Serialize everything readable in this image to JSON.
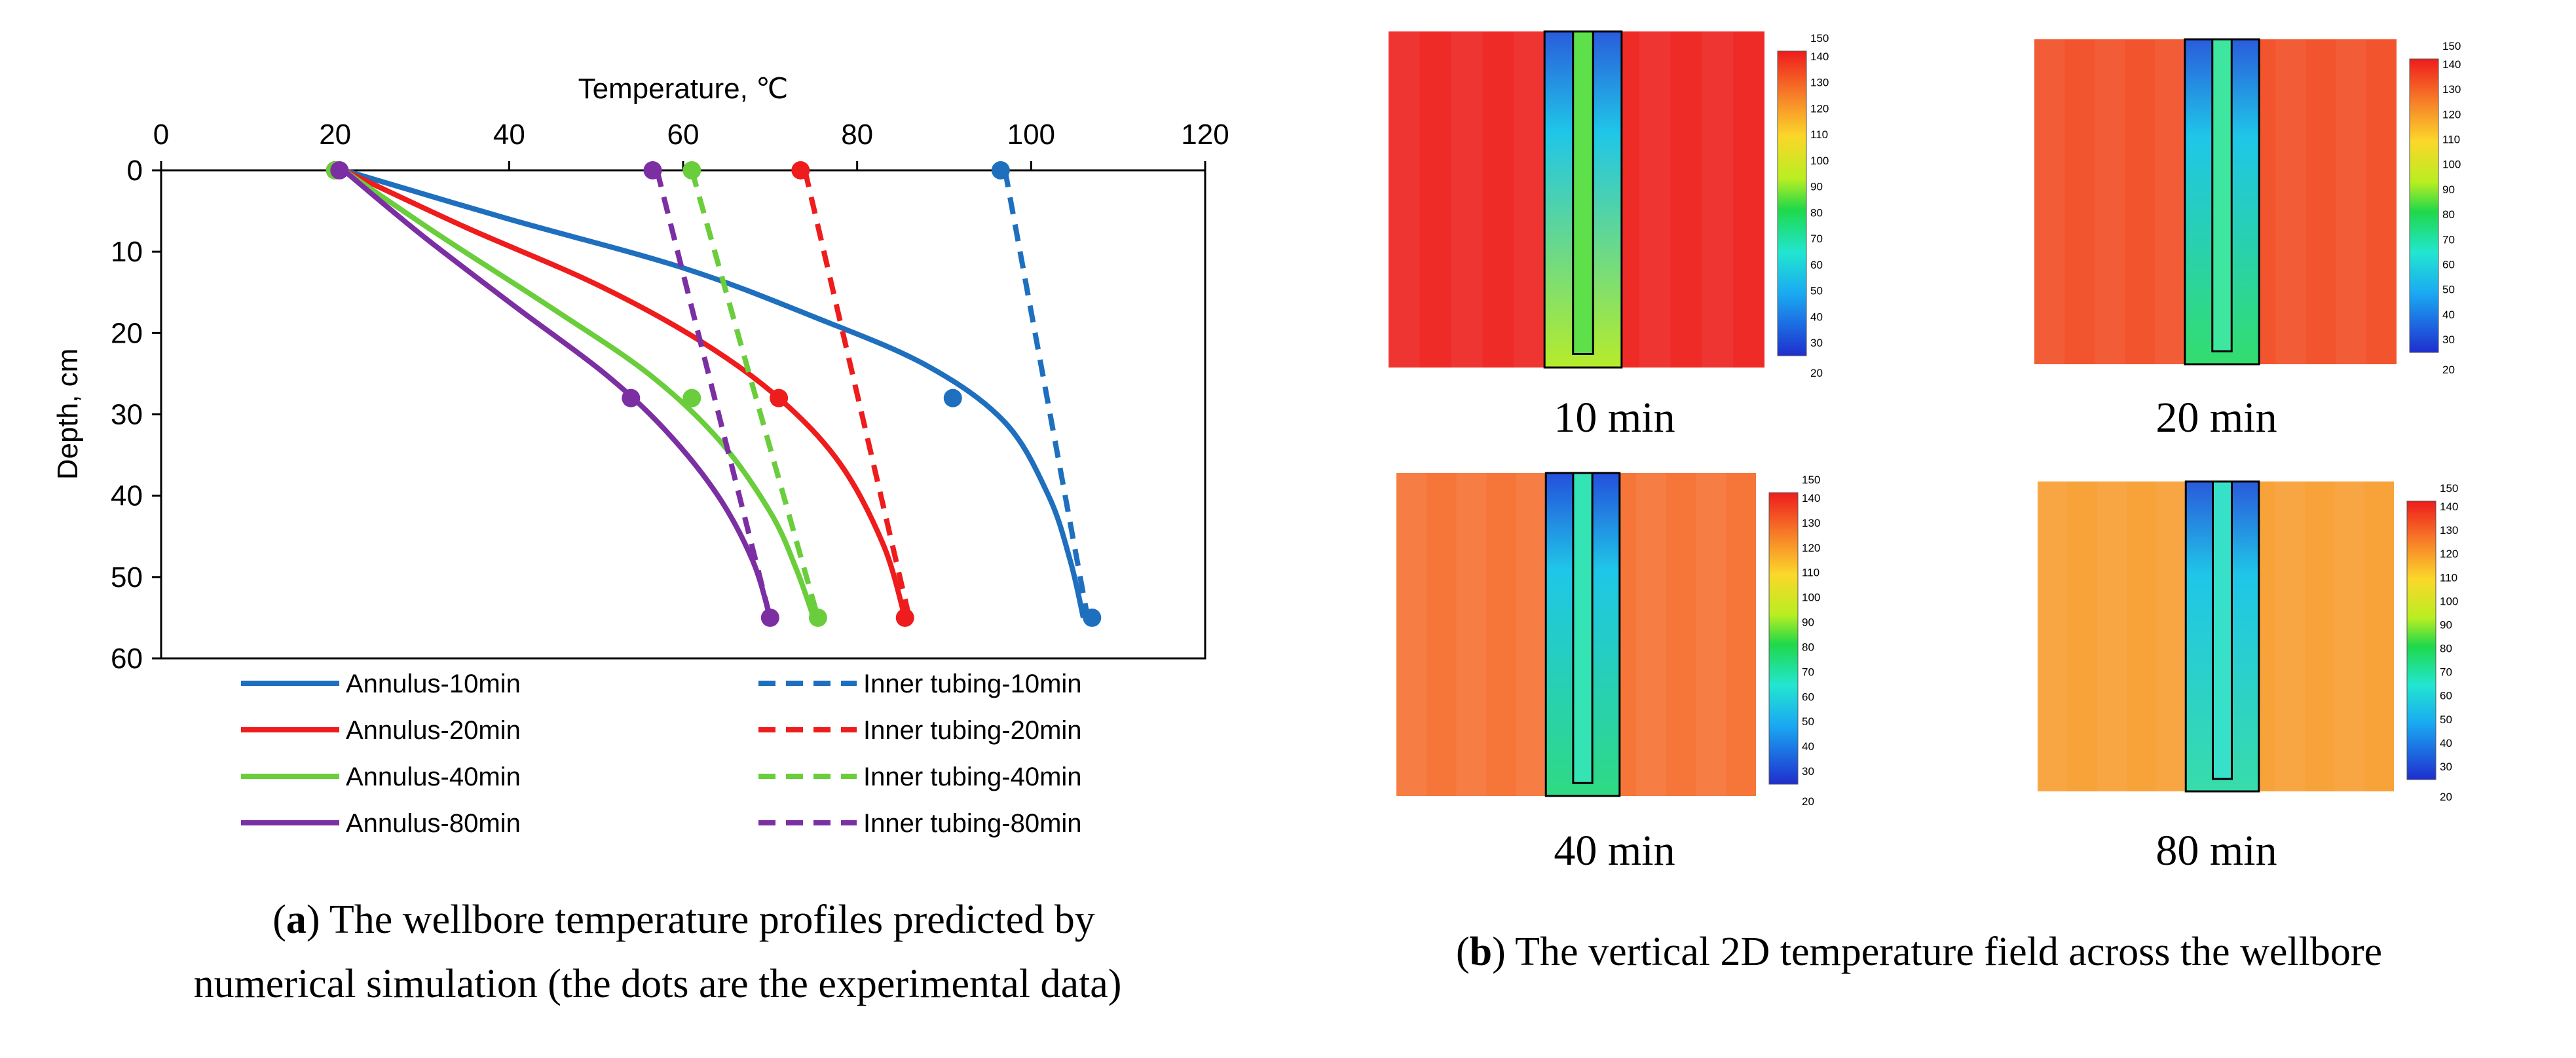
{
  "chart_data": [
    {
      "type": "line",
      "xlabel": "Temperature, ℃",
      "ylabel": "Depth, cm",
      "xlim": [
        0,
        120
      ],
      "ylim": [
        0,
        60
      ],
      "y_inverted": true,
      "x_axis_position": "top",
      "x_ticks": [
        "0",
        "20",
        "40",
        "60",
        "80",
        "100",
        "120"
      ],
      "y_ticks": [
        "0",
        "10",
        "20",
        "30",
        "40",
        "50",
        "60"
      ],
      "grid": false,
      "legend_position": "bottom",
      "series": [
        {
          "name": "Annulus-10min",
          "style": "solid",
          "color": "#1f6fbf",
          "points": [
            [
              21,
              0
            ],
            [
              40,
              6
            ],
            [
              60,
              12
            ],
            [
              75,
              18
            ],
            [
              88,
              24
            ],
            [
              97,
              31
            ],
            [
              102,
              40
            ],
            [
              104.5,
              48
            ],
            [
              106,
              55
            ]
          ],
          "experimental": [
            [
              20,
              0
            ],
            [
              91,
              28
            ],
            [
              107,
              55
            ]
          ]
        },
        {
          "name": "Annulus-20min",
          "style": "solid",
          "color": "#ee1c1c",
          "points": [
            [
              21,
              0
            ],
            [
              35,
              7
            ],
            [
              50,
              14
            ],
            [
              62,
              21
            ],
            [
              71,
              28
            ],
            [
              78,
              36
            ],
            [
              83,
              46
            ],
            [
              85.5,
              55
            ]
          ],
          "experimental": [
            [
              20,
              0
            ],
            [
              71,
              28
            ],
            [
              85.5,
              55
            ]
          ]
        },
        {
          "name": "Annulus-40min",
          "style": "solid",
          "color": "#6acd3c",
          "points": [
            [
              21,
              0
            ],
            [
              32,
              8
            ],
            [
              45,
              17
            ],
            [
              56,
              25
            ],
            [
              64,
              33
            ],
            [
              70,
              42
            ],
            [
              73,
              49
            ],
            [
              75,
              55
            ]
          ],
          "experimental": [
            [
              20,
              0
            ],
            [
              61,
              28
            ],
            [
              75.5,
              55
            ]
          ]
        },
        {
          "name": "Annulus-80min",
          "style": "solid",
          "color": "#7b2fa3",
          "points": [
            [
              21,
              0
            ],
            [
              30,
              8
            ],
            [
              41,
              17
            ],
            [
              51,
              25
            ],
            [
              58,
              32
            ],
            [
              64,
              40
            ],
            [
              68,
              48
            ],
            [
              70,
              55
            ]
          ],
          "experimental": [
            [
              20.5,
              0
            ],
            [
              54,
              28
            ],
            [
              70,
              55
            ]
          ]
        },
        {
          "name": "Inner tubing-10min",
          "style": "dashed",
          "color": "#1f6fbf",
          "points": [
            [
              97,
              0
            ],
            [
              106.5,
              55
            ]
          ],
          "experimental": [
            [
              96.5,
              0
            ]
          ]
        },
        {
          "name": "Inner tubing-20min",
          "style": "dashed",
          "color": "#ee1c1c",
          "points": [
            [
              74,
              0
            ],
            [
              86,
              55
            ]
          ],
          "experimental": [
            [
              73.5,
              0
            ]
          ]
        },
        {
          "name": "Inner tubing-40min",
          "style": "dashed",
          "color": "#6acd3c",
          "points": [
            [
              61,
              0
            ],
            [
              75.5,
              55
            ]
          ],
          "experimental": [
            [
              61,
              0
            ]
          ]
        },
        {
          "name": "Inner tubing-80min",
          "style": "dashed",
          "color": "#7b2fa3",
          "points": [
            [
              57,
              0
            ],
            [
              70,
              55
            ]
          ],
          "experimental": [
            [
              56.5,
              0
            ]
          ]
        }
      ]
    },
    {
      "type": "heatmap",
      "colorbar_range": [
        20,
        150
      ],
      "colorbar_ticks": [
        "150",
        "140",
        "130",
        "120",
        "110",
        "100",
        "90",
        "80",
        "70",
        "60",
        "50",
        "40",
        "30",
        "20"
      ],
      "panels": [
        {
          "label": "10 min",
          "formation_color": "#ee2b26",
          "tubing_color": "#5ee04a",
          "annulus_top": "#2a5cdc",
          "annulus_bottom": "#b6ec2a"
        },
        {
          "label": "20 min",
          "formation_color": "#f2552e",
          "tubing_color": "#3ee6a0",
          "annulus_top": "#2a5cdc",
          "annulus_bottom": "#33dd6e"
        },
        {
          "label": "40 min",
          "formation_color": "#f6763a",
          "tubing_color": "#35e4b4",
          "annulus_top": "#2450dc",
          "annulus_bottom": "#2fda82"
        },
        {
          "label": "80 min",
          "formation_color": "#f8a23a",
          "tubing_color": "#37e0c8",
          "annulus_top": "#2a5adc",
          "annulus_bottom": "#38dcaa"
        }
      ]
    }
  ],
  "captions": {
    "a_label": "a",
    "a_line1": ") The wellbore temperature profiles predicted by",
    "a_line2": "numerical simulation (the dots are the experimental data)",
    "b_label": "b",
    "b_line1": ") The vertical 2D temperature field across the wellbore"
  },
  "colors": {
    "axis": "#000000",
    "background": "#ffffff"
  }
}
